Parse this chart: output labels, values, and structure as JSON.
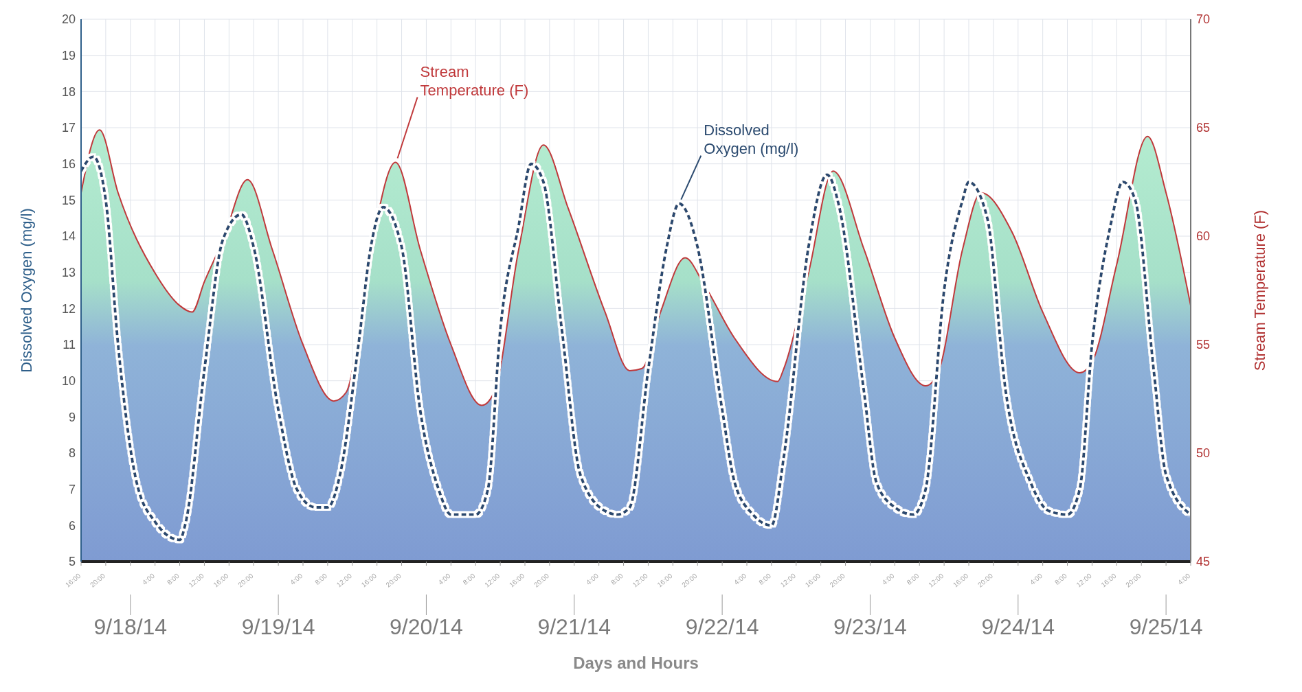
{
  "chart_data": {
    "type": "line",
    "xlabel": "Days and Hours",
    "ylabel": "Dissolved Oxygen (mg/l)",
    "y2label": "Stream Temperature (F)",
    "xlim": [
      "--09-17T16:00",
      "--09-25T04:00"
    ],
    "x2lim": [
      "--09-17T16:00",
      "--09-25T04:00"
    ],
    "x2ticks": [
      {
        "value": "--09-18T00:00",
        "label": "9/18/14"
      },
      {
        "value": "--09-19T00:00",
        "label": "9/19/14"
      },
      {
        "value": "--09-20T00:00",
        "label": "9/20/14"
      },
      {
        "value": "--09-21T00:00",
        "label": "9/21/14"
      },
      {
        "value": "--09-22T00:00",
        "label": "9/22/14"
      },
      {
        "value": "--09-23T00:00",
        "label": "9/23/14"
      },
      {
        "value": "--09-24T00:00",
        "label": "9/24/14"
      },
      {
        "value": "--09-25T00:00",
        "label": "9/25/14"
      }
    ],
    "xticks": [
      {
        "value": "--09-17T16:00",
        "label": "16:00"
      },
      {
        "value": "--09-17T20:00",
        "label": "20:00"
      },
      {
        "value": "--09-18T00:00",
        "label": null
      },
      {
        "value": "--09-18T04:00",
        "label": "4:00"
      },
      {
        "value": "--09-18T08:00",
        "label": "8:00"
      },
      {
        "value": "--09-18T12:00",
        "label": "12:00"
      },
      {
        "value": "--09-18T16:00",
        "label": "16:00"
      },
      {
        "value": "--09-18T20:00",
        "label": "20:00"
      },
      {
        "value": "--09-19T00:00",
        "label": null
      },
      {
        "value": "--09-19T04:00",
        "label": "4:00"
      },
      {
        "value": "--09-19T08:00",
        "label": "8:00"
      },
      {
        "value": "--09-19T12:00",
        "label": "12:00"
      },
      {
        "value": "--09-19T16:00",
        "label": "16:00"
      },
      {
        "value": "--09-19T20:00",
        "label": "20:00"
      },
      {
        "value": "--09-20T00:00",
        "label": null
      },
      {
        "value": "--09-20T04:00",
        "label": "4:00"
      },
      {
        "value": "--09-20T08:00",
        "label": "8:00"
      },
      {
        "value": "--09-20T12:00",
        "label": "12:00"
      },
      {
        "value": "--09-20T16:00",
        "label": "16:00"
      },
      {
        "value": "--09-20T20:00",
        "label": "20:00"
      },
      {
        "value": "--09-21T00:00",
        "label": null
      },
      {
        "value": "--09-21T04:00",
        "label": "4:00"
      },
      {
        "value": "--09-21T08:00",
        "label": "8:00"
      },
      {
        "value": "--09-21T12:00",
        "label": "12:00"
      },
      {
        "value": "--09-21T16:00",
        "label": "16:00"
      },
      {
        "value": "--09-21T20:00",
        "label": "20:00"
      },
      {
        "value": "--09-22T00:00",
        "label": null
      },
      {
        "value": "--09-22T04:00",
        "label": "4:00"
      },
      {
        "value": "--09-22T08:00",
        "label": "8:00"
      },
      {
        "value": "--09-22T12:00",
        "label": "12:00"
      },
      {
        "value": "--09-22T16:00",
        "label": "16:00"
      },
      {
        "value": "--09-22T20:00",
        "label": "20:00"
      },
      {
        "value": "--09-23T00:00",
        "label": null
      },
      {
        "value": "--09-23T04:00",
        "label": "4:00"
      },
      {
        "value": "--09-23T08:00",
        "label": "8:00"
      },
      {
        "value": "--09-23T12:00",
        "label": "12:00"
      },
      {
        "value": "--09-23T16:00",
        "label": "16:00"
      },
      {
        "value": "--09-23T20:00",
        "label": "20:00"
      },
      {
        "value": "--09-24T00:00",
        "label": null
      },
      {
        "value": "--09-24T04:00",
        "label": "4:00"
      },
      {
        "value": "--09-24T08:00",
        "label": "8:00"
      },
      {
        "value": "--09-24T12:00",
        "label": "12:00"
      },
      {
        "value": "--09-24T16:00",
        "label": "16:00"
      },
      {
        "value": "--09-24T20:00",
        "label": "20:00"
      },
      {
        "value": "--09-25T00:00",
        "label": null
      },
      {
        "value": "--09-25T04:00",
        "label": "4:00"
      }
    ],
    "ylim": [
      5,
      20
    ],
    "yticks": [
      5,
      6,
      7,
      8,
      9,
      10,
      11,
      12,
      13,
      14,
      15,
      16,
      17,
      18,
      19,
      20
    ],
    "y2lim": [
      45,
      70
    ],
    "y2ticks": [
      45,
      50,
      55,
      60,
      65,
      70
    ],
    "grid": true,
    "legend": false,
    "marker": "none",
    "series": [
      {
        "name": "Stream Temperature (F)",
        "type": "area",
        "axis": "y2",
        "color": "#c0393b",
        "line_style": "solid",
        "x": [
          "--09-17T16:00",
          "--09-17T19:00",
          "--09-17T22:00",
          "--09-18T04:00",
          "--09-18T08:00",
          "--09-18T10:00",
          "--09-18T12:00",
          "--09-18T15:00",
          "--09-18T19:00",
          "--09-18T23:00",
          "--09-19T04:00",
          "--09-19T09:00",
          "--09-19T11:00",
          "--09-19T15:00",
          "--09-19T19:00",
          "--09-19T23:00",
          "--09-20T04:00",
          "--09-20T09:00",
          "--09-20T11:00",
          "--09-20T15:00",
          "--09-20T19:00",
          "--09-20T23:00",
          "--09-21T05:00",
          "--09-21T09:00",
          "--09-21T11:00",
          "--09-21T14:00",
          "--09-21T18:00",
          "--09-21T21:00",
          "--09-22T02:00",
          "--09-22T09:00",
          "--09-22T10:00",
          "--09-22T14:00",
          "--09-22T18:00",
          "--09-22T23:00",
          "--09-23T04:00",
          "--09-23T09:00",
          "--09-23T11:00",
          "--09-23T15:00",
          "--09-23T18:00",
          "--09-23T23:00",
          "--09-24T04:00",
          "--09-24T10:00",
          "--09-24T12:00",
          "--09-24T16:00",
          "--09-24T21:00",
          "--09-25T00:00",
          "--09-25T04:00"
        ],
        "values": [
          62.0,
          64.9,
          62.0,
          58.3,
          56.8,
          56.5,
          57.9,
          59.8,
          62.6,
          59.4,
          55.0,
          52.4,
          52.8,
          59.4,
          63.4,
          59.4,
          55.0,
          52.2,
          52.8,
          59.4,
          64.2,
          61.3,
          56.5,
          53.8,
          53.9,
          56.5,
          59.0,
          57.8,
          55.3,
          53.3,
          53.9,
          58.3,
          63.0,
          59.4,
          55.3,
          53.1,
          53.7,
          59.4,
          62.0,
          60.2,
          56.5,
          53.7,
          54.2,
          58.7,
          64.6,
          62.0,
          56.8
        ]
      },
      {
        "name": "Dissolved Oxygen (mg/l)",
        "type": "line",
        "axis": "y",
        "color": "#2b4a6f",
        "line_style": "dashed",
        "x": [
          "--09-17T16:00",
          "--09-17T18:00",
          "--09-17T20:00",
          "--09-17T22:00",
          "--09-18T01:00",
          "--09-18T04:00",
          "--09-18T08:00",
          "--09-18T09:00",
          "--09-18T12:00",
          "--09-18T15:00",
          "--09-18T18:00",
          "--09-18T20:00",
          "--09-19T00:00",
          "--09-19T03:00",
          "--09-19T06:00",
          "--09-19T08:00",
          "--09-19T10:00",
          "--09-19T13:00",
          "--09-19T15:00",
          "--09-19T17:00",
          "--09-19T20:00",
          "--09-19T23:00",
          "--09-20T02:00",
          "--09-20T04:00",
          "--09-20T08:00",
          "--09-20T10:00",
          "--09-20T12:00",
          "--09-20T15:00",
          "--09-20T17:00",
          "--09-20T19:00",
          "--09-20T22:00",
          "--09-21T01:00",
          "--09-21T05:00",
          "--09-21T07:00",
          "--09-21T09:00",
          "--09-21T12:00",
          "--09-21T15:00",
          "--09-21T17:00",
          "--09-21T20:00",
          "--09-22T00:00",
          "--09-22T02:00",
          "--09-22T05:00",
          "--09-22T08:00",
          "--09-22T10:00",
          "--09-22T14:00",
          "--09-22T17:00",
          "--09-22T19:00",
          "--09-22T23:00",
          "--09-23T01:00",
          "--09-23T04:00",
          "--09-23T07:00",
          "--09-23T09:00",
          "--09-23T12:00",
          "--09-23T15:00",
          "--09-23T16:00",
          "--09-23T19:00",
          "--09-23T22:00",
          "--09-24T02:00",
          "--09-24T05:00",
          "--09-24T08:00",
          "--09-24T10:00",
          "--09-24T12:00",
          "--09-24T15:00",
          "--09-24T17:00",
          "--09-24T19:00",
          "--09-24T22:00",
          "--09-25T00:00",
          "--09-25T04:00"
        ],
        "values": [
          15.8,
          16.2,
          15.0,
          11.0,
          7.2,
          6.1,
          5.6,
          6.1,
          10.3,
          13.9,
          14.6,
          13.7,
          9.2,
          7.0,
          6.5,
          6.5,
          7.4,
          11.0,
          13.7,
          14.8,
          13.7,
          9.2,
          7.0,
          6.3,
          6.3,
          7.0,
          11.4,
          14.3,
          16.0,
          15.5,
          11.4,
          7.4,
          6.4,
          6.3,
          6.5,
          10.3,
          13.7,
          14.9,
          13.7,
          9.2,
          7.2,
          6.3,
          6.0,
          7.9,
          13.7,
          15.7,
          14.8,
          9.7,
          7.2,
          6.5,
          6.3,
          7.0,
          12.5,
          15.0,
          15.5,
          14.5,
          9.7,
          7.2,
          6.4,
          6.3,
          7.0,
          11.0,
          14.3,
          15.5,
          15.0,
          10.3,
          7.4,
          6.3
        ]
      }
    ]
  }
}
